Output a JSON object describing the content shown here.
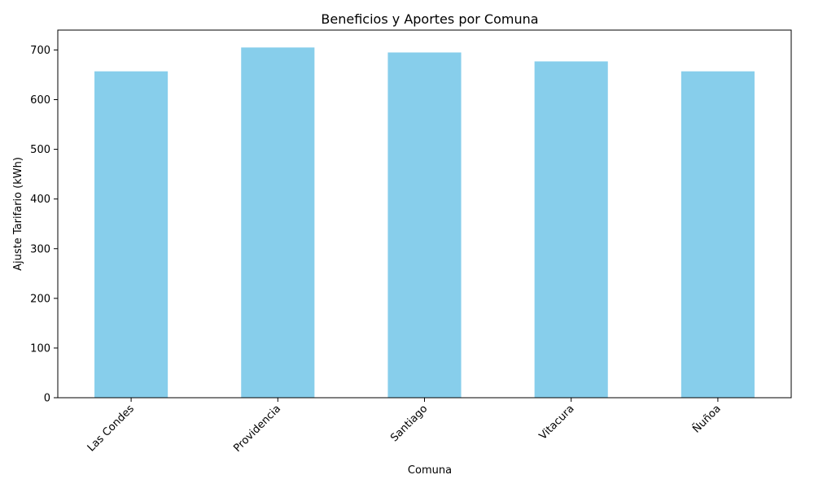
{
  "chart_data": {
    "type": "bar",
    "title": "Beneficios y Aportes por Comuna",
    "xlabel": "Comuna",
    "ylabel": "Ajuste Tarifario (kWh)",
    "categories": [
      "Las Condes",
      "Providencia",
      "Santiago",
      "Vitacura",
      "Ñuñoa"
    ],
    "values": [
      657,
      705,
      695,
      677,
      657
    ],
    "ylim": [
      0,
      740
    ],
    "yticks": [
      0,
      100,
      200,
      300,
      400,
      500,
      600,
      700
    ],
    "bar_color": "#87ceeb",
    "grid": false,
    "legend": "none"
  }
}
